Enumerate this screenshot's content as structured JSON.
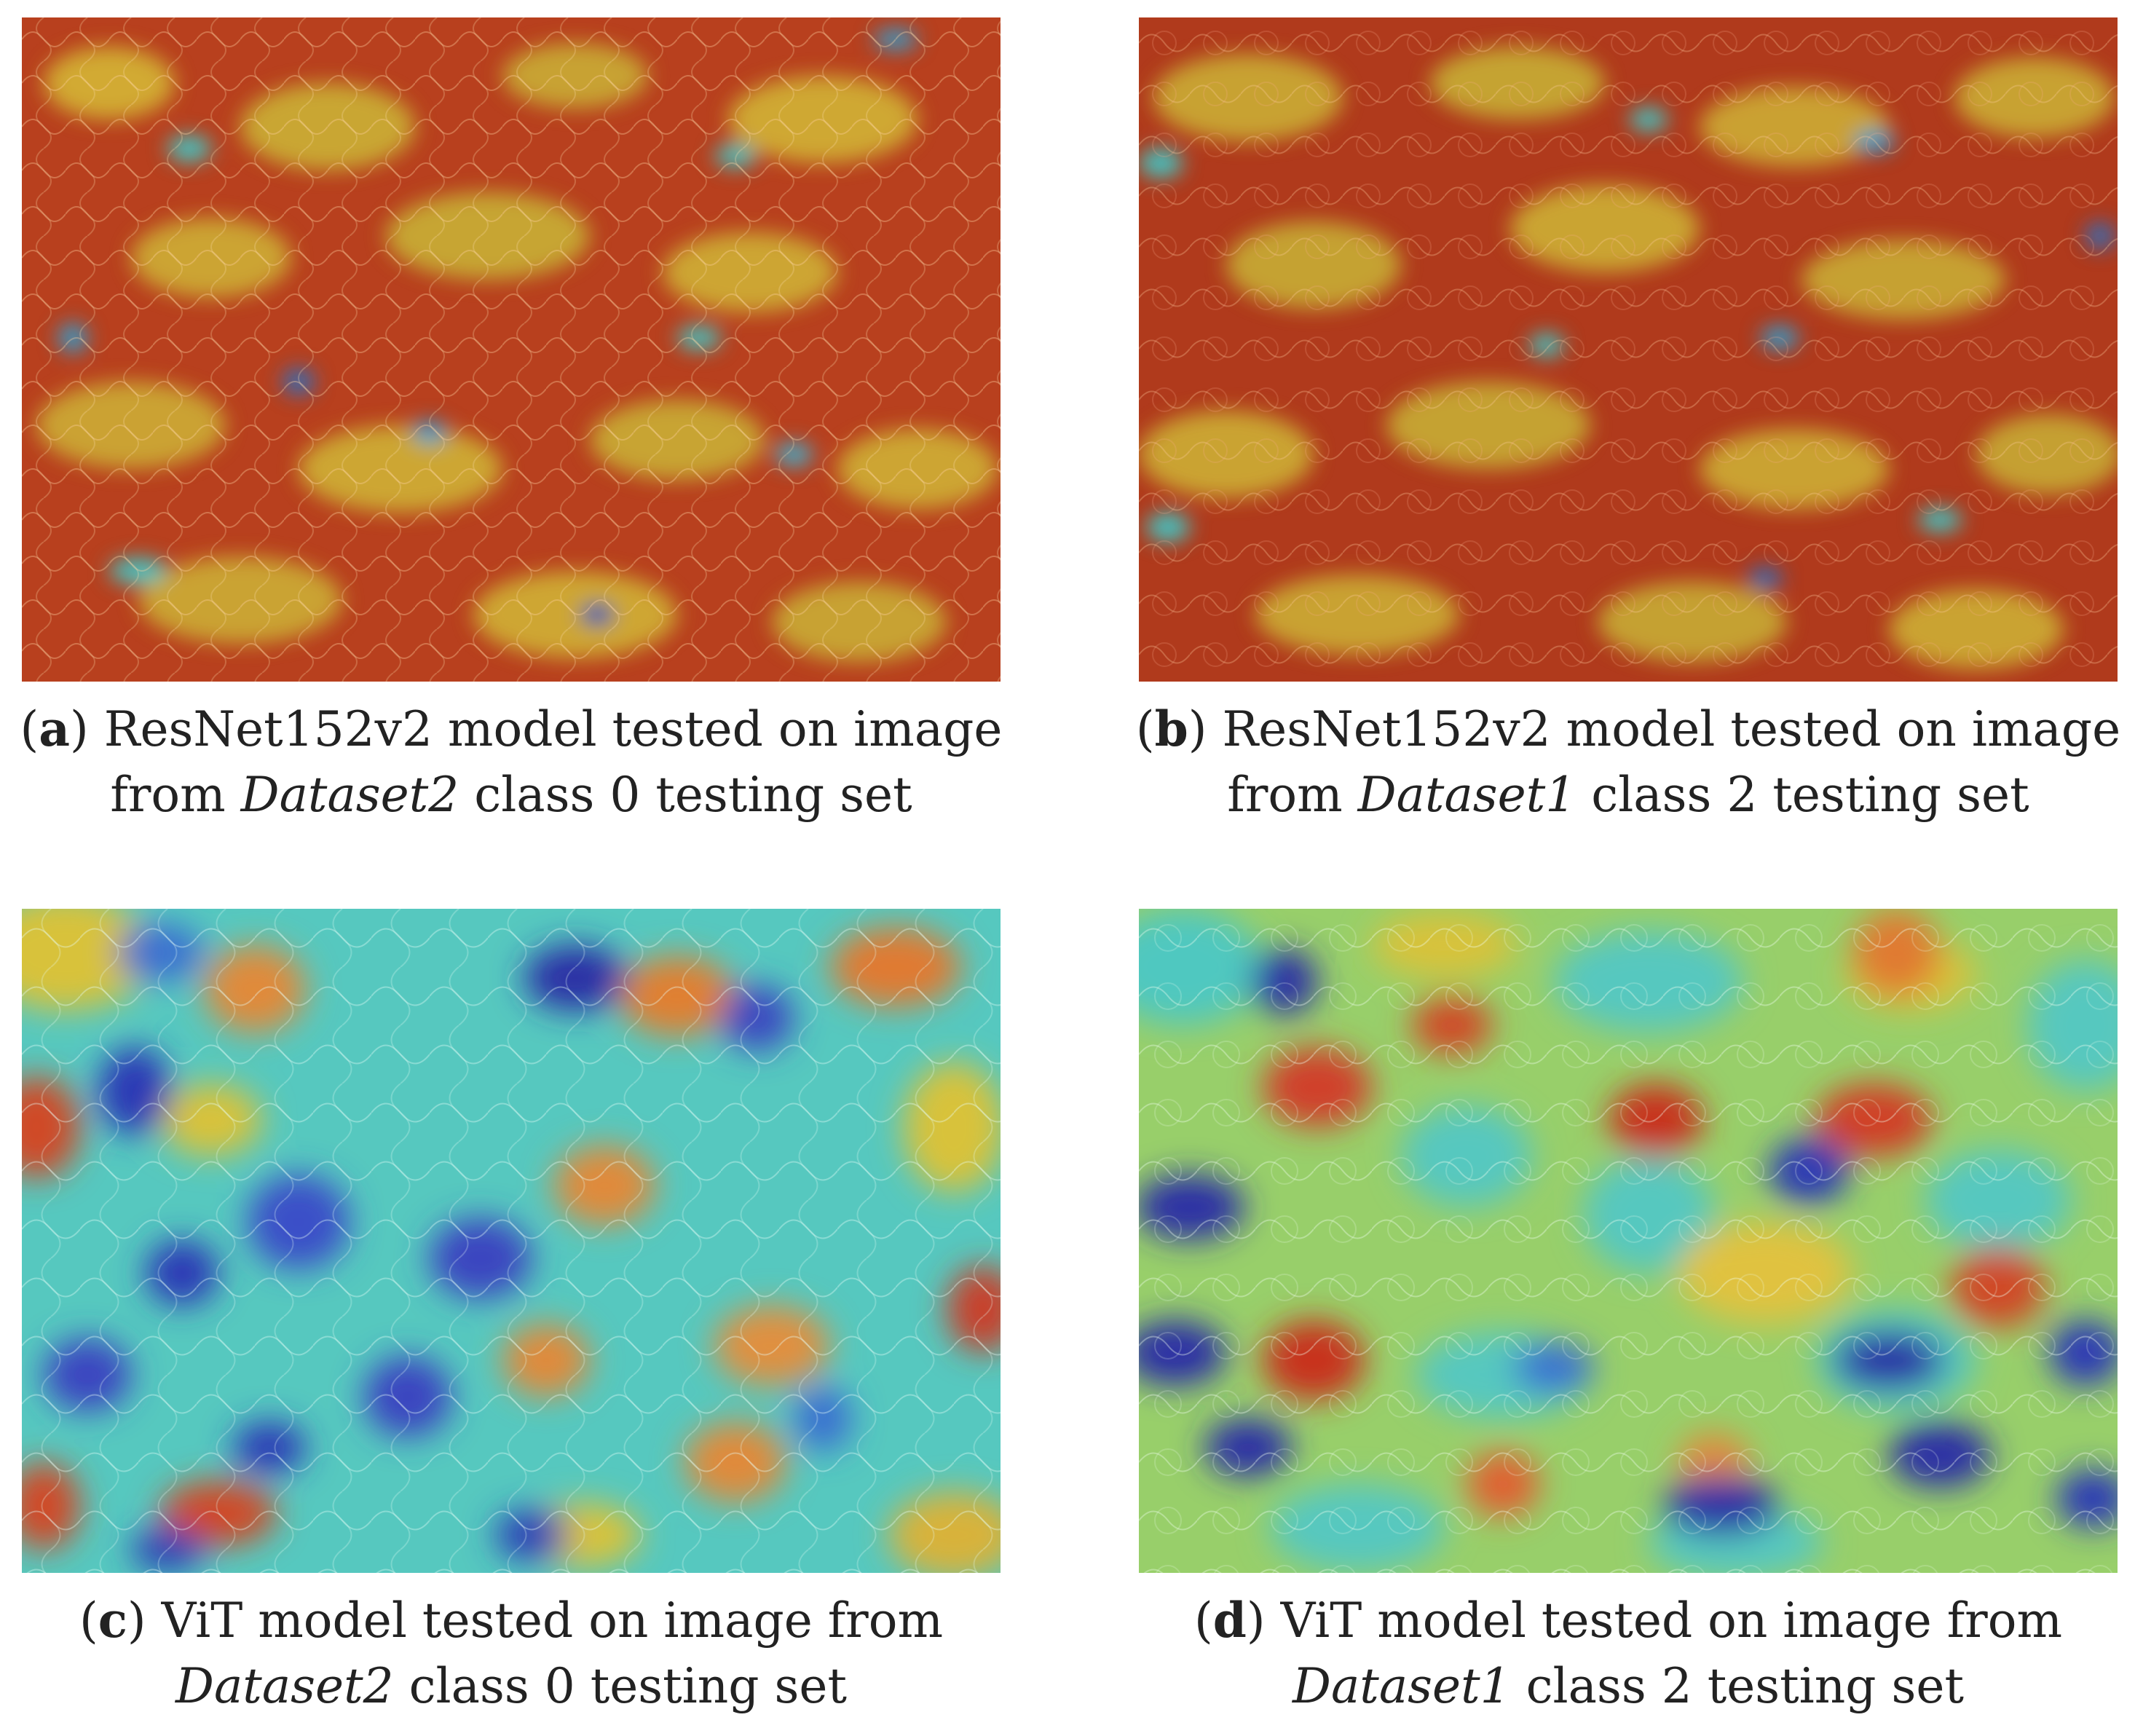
{
  "figure": {
    "panels": [
      {
        "id": "a",
        "letter": "a",
        "line1": "ResNet152v2 model tested on image",
        "line2_pre": "from ",
        "dataset": "Dataset2",
        "line2_post": " class 0 testing set",
        "style": "resnet"
      },
      {
        "id": "b",
        "letter": "b",
        "line1": "ResNet152v2 model tested on image",
        "line2_pre": "from ",
        "dataset": "Dataset1",
        "line2_post": " class 2 testing set",
        "style": "resnet"
      },
      {
        "id": "c",
        "letter": "c",
        "line1": "ViT model tested on image from",
        "line2_pre": "",
        "dataset": "Dataset2",
        "line2_post": " class 0 testing set",
        "style": "vit"
      },
      {
        "id": "d",
        "letter": "d",
        "line1": "ViT model tested on image from",
        "line2_pre": "",
        "dataset": "Dataset1",
        "line2_post": " class 2 testing set",
        "style": "vit"
      }
    ],
    "colors": {
      "heatmap_red": "#b5381a",
      "heatmap_orange": "#e07a2a",
      "heatmap_yellow": "#d8d83a",
      "heatmap_cyan": "#3fc6c6",
      "heatmap_blue": "#2a3fb5"
    }
  }
}
